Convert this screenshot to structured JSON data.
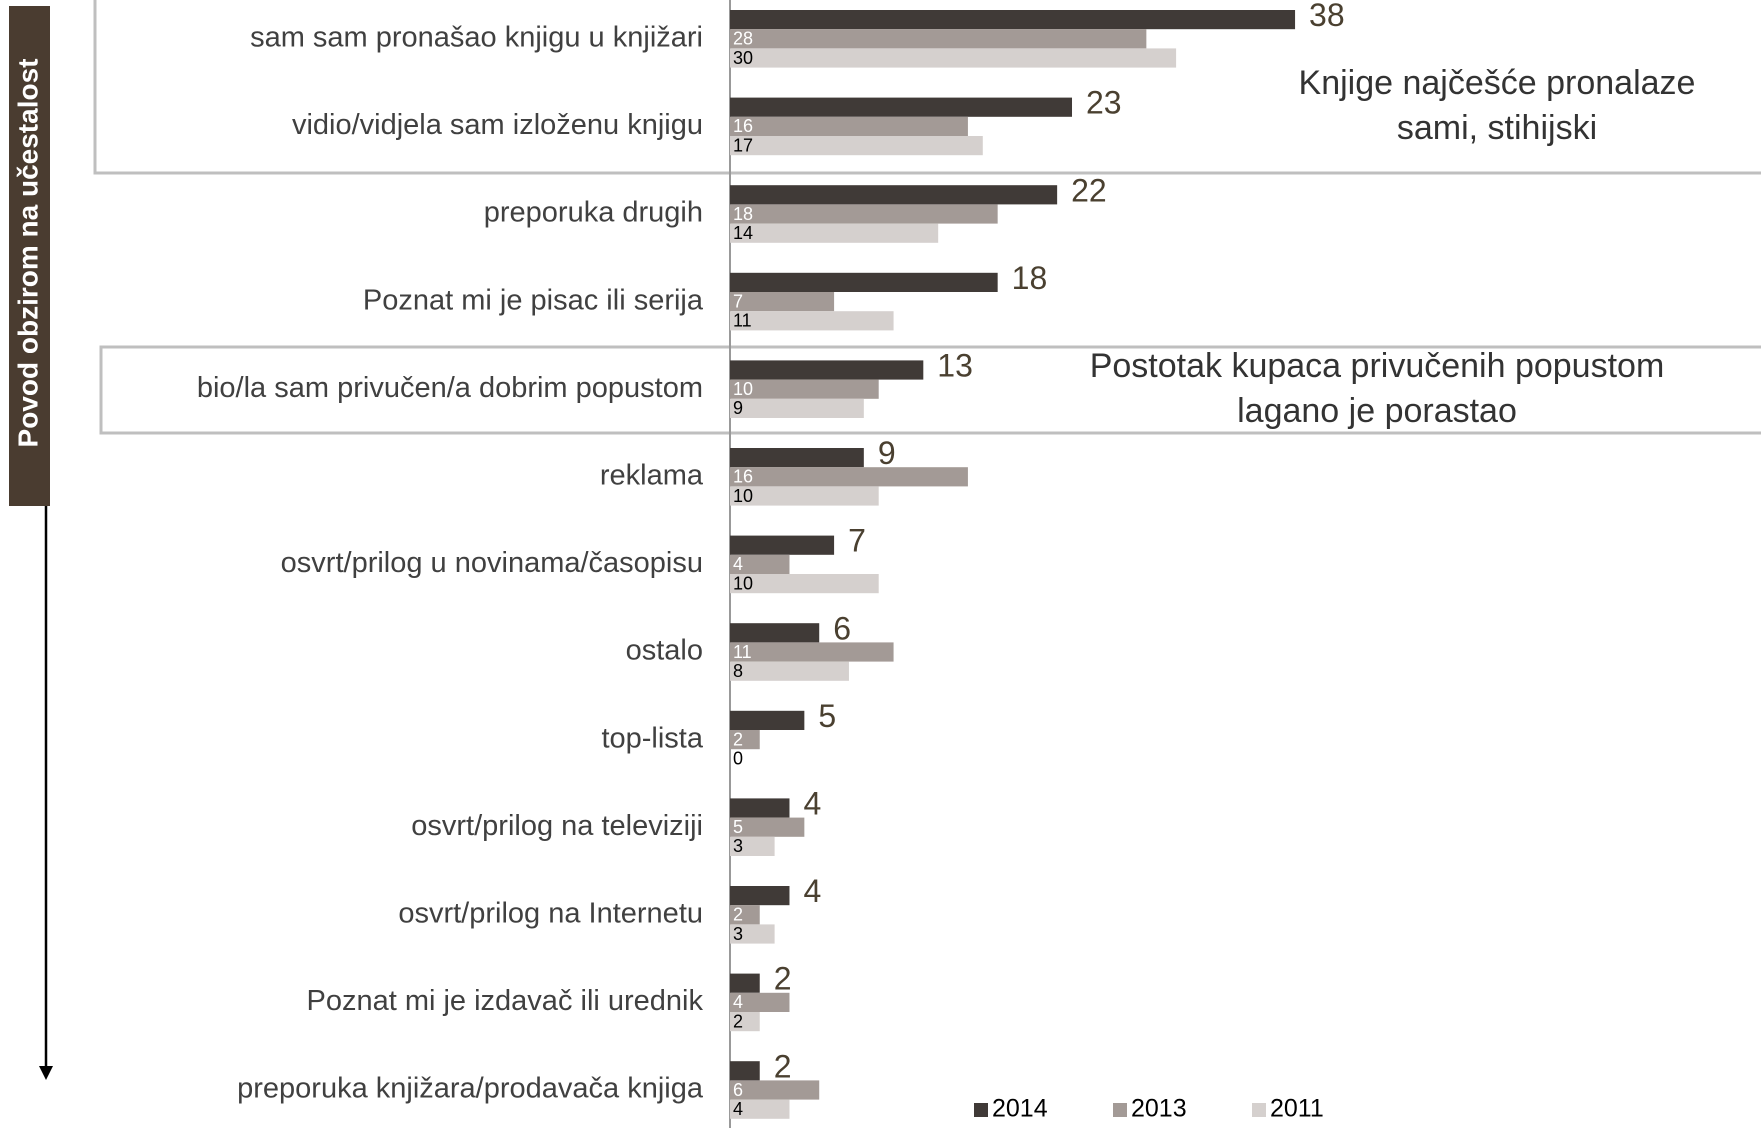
{
  "chart_data": {
    "type": "bar",
    "orientation": "horizontal",
    "y_axis_label": "Povod obzirom na učestalost",
    "categories": [
      "sam sam pronašao knjigu u knjižari",
      "vidio/vidjela sam izloženu knjigu",
      "preporuka drugih",
      "Poznat mi je pisac ili serija",
      "bio/la sam privučen/a dobrim popustom",
      "reklama",
      "osvrt/prilog u novinama/časopisu",
      "ostalo",
      "top-lista",
      "osvrt/prilog na televiziji",
      "osvrt/prilog na Internetu",
      "Poznat mi je izdavač ili urednik",
      "preporuka knjižara/prodavača knjiga"
    ],
    "series": [
      {
        "name": "2014",
        "color": "#403a37",
        "values": [
          38,
          23,
          22,
          18,
          13,
          9,
          7,
          6,
          5,
          4,
          4,
          2,
          2
        ]
      },
      {
        "name": "2013",
        "color": "#a39a96",
        "values": [
          28,
          16,
          18,
          7,
          10,
          16,
          4,
          11,
          2,
          5,
          2,
          4,
          6
        ]
      },
      {
        "name": "2011",
        "color": "#d5d0ce",
        "values": [
          30,
          17,
          14,
          11,
          9,
          10,
          10,
          8,
          0,
          3,
          3,
          2,
          4
        ]
      }
    ],
    "annotations": [
      {
        "lines": [
          "Knjige najčešće pronalaze",
          "sami, stihijski"
        ]
      },
      {
        "lines": [
          "Postotak kupaca privučenih popustom",
          "lagano je porastao"
        ]
      }
    ],
    "legend": "bottom"
  }
}
